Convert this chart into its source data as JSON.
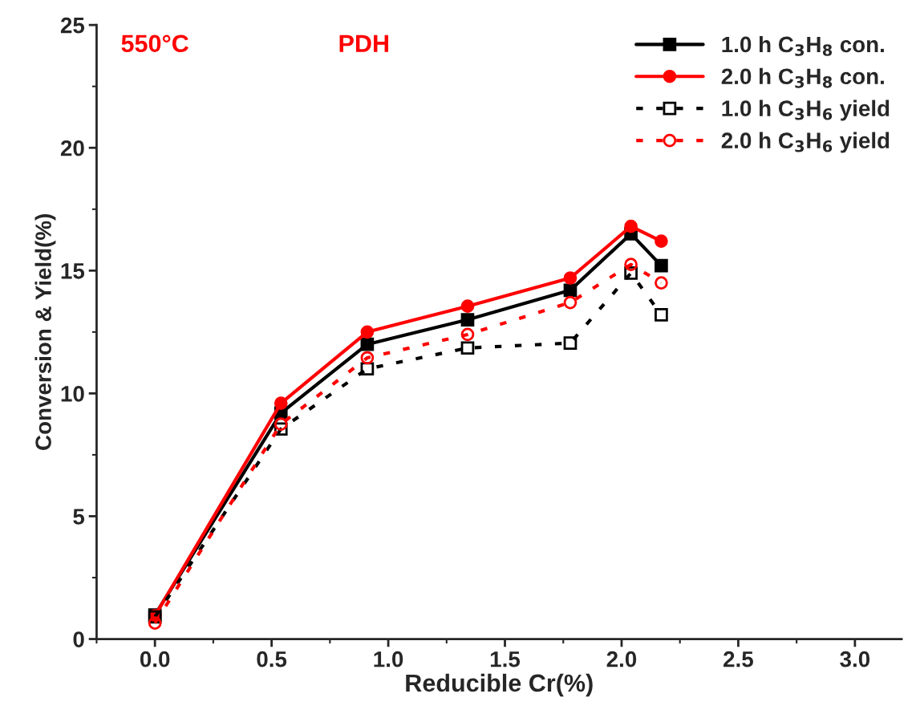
{
  "chart_data": {
    "type": "line",
    "xlabel": "Reducible Cr(%)",
    "ylabel": "Conversion & Yield(%)",
    "x": [
      0.0,
      0.54,
      0.91,
      1.34,
      1.78,
      2.04,
      2.17
    ],
    "series": [
      {
        "name": "1.0 h C$_{3}$H$_{8}$ con.",
        "color": "#000000",
        "marker": "square",
        "line_style": "solid",
        "values": [
          0.98,
          9.2,
          12.0,
          13.0,
          14.2,
          16.5,
          15.2
        ]
      },
      {
        "name": "2.0 h C$_{3}$H$_{8}$ con.",
        "color": "#ff0000",
        "marker": "circle",
        "line_style": "solid",
        "values": [
          0.95,
          9.6,
          12.5,
          13.55,
          14.7,
          16.8,
          16.2
        ]
      },
      {
        "name": "1.0 h C$_{3}$H$_{6}$ yield",
        "color": "#000000",
        "marker": "square",
        "line_style": "dotted",
        "values": [
          0.9,
          8.55,
          11.0,
          11.85,
          12.05,
          14.9,
          13.2
        ]
      },
      {
        "name": "2.0 h C$_{3}$H$_{6}$ yield",
        "color": "#ff0000",
        "marker": "circle",
        "line_style": "dotted",
        "values": [
          0.65,
          8.75,
          11.45,
          12.4,
          13.7,
          15.25,
          14.5
        ]
      }
    ],
    "xlim": [
      -0.25,
      3.2
    ],
    "xticks": [
      {
        "value": 0,
        "label": "0.0"
      },
      0.5,
      {
        "value": 1,
        "label": "1.0"
      },
      1.5,
      {
        "value": 2,
        "label": "2.0"
      },
      2.5,
      {
        "value": 3,
        "label": "3.0"
      }
    ],
    "ylim": [
      0,
      25
    ],
    "yticks": [
      0,
      5,
      10,
      15,
      20,
      25
    ],
    "annotations": [
      "550°C",
      "PDH"
    ],
    "legend": "top right",
    "grid": false
  }
}
